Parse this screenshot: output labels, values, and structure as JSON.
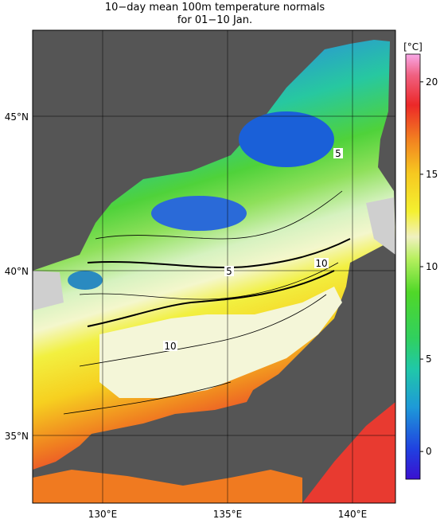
{
  "title": {
    "line1": "10−day mean 100m temperature normals",
    "line2": "for 01−10 Jan."
  },
  "map": {
    "lat_labels": [
      "45°N",
      "40°N",
      "35°N"
    ],
    "lon_labels": [
      "130°E",
      "135°E",
      "140°E"
    ],
    "contour_labels": [
      "5",
      "10",
      "5",
      "10"
    ]
  },
  "colorbar": {
    "unit": "[°C]",
    "ticks": [
      "20",
      "15",
      "10",
      "5",
      "0"
    ],
    "range": [
      -1.5,
      21.5
    ]
  },
  "colors": {
    "land": "#555555",
    "coast_gray": "#cfcfcf"
  }
}
